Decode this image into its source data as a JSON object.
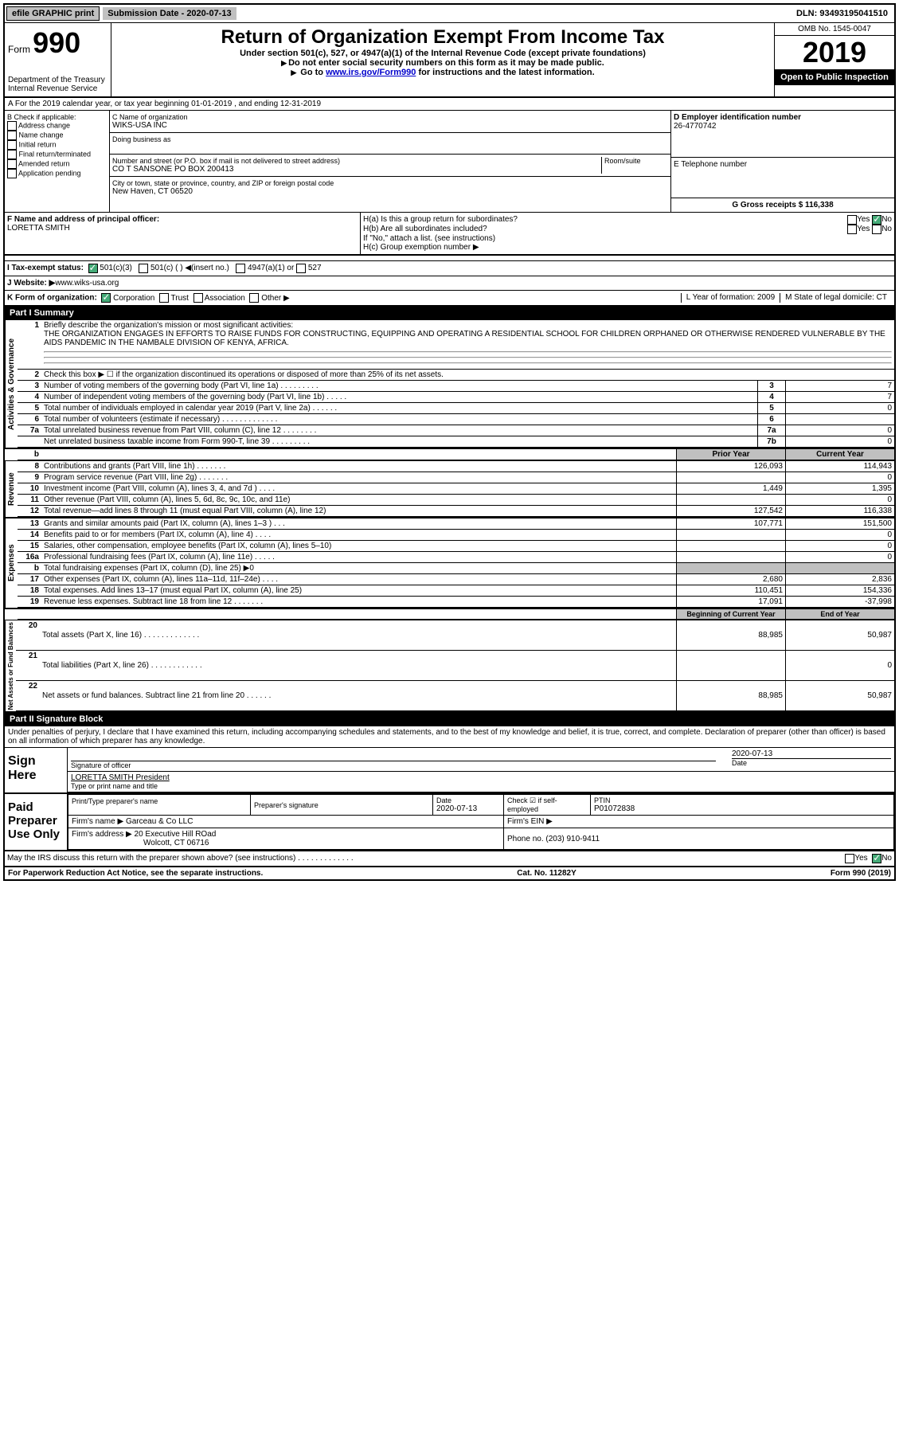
{
  "topbar": {
    "efile": "efile GRAPHIC print",
    "submission": "Submission Date - 2020-07-13",
    "dln": "DLN: 93493195041510"
  },
  "header": {
    "form": "Form",
    "num": "990",
    "dept": "Department of the Treasury\nInternal Revenue Service",
    "title": "Return of Organization Exempt From Income Tax",
    "sub1": "Under section 501(c), 527, or 4947(a)(1) of the Internal Revenue Code (except private foundations)",
    "sub2": "Do not enter social security numbers on this form as it may be made public.",
    "sub3_pre": "Go to ",
    "sub3_link": "www.irs.gov/Form990",
    "sub3_post": " for instructions and the latest information.",
    "omb": "OMB No. 1545-0047",
    "year": "2019",
    "inspection": "Open to Public Inspection"
  },
  "rowA": "A  For the 2019 calendar year, or tax year beginning 01-01-2019    , and ending 12-31-2019",
  "boxB": {
    "label": "B Check if applicable:",
    "opts": [
      "Address change",
      "Name change",
      "Initial return",
      "Final return/terminated",
      "Amended return",
      "Application pending"
    ]
  },
  "boxC": {
    "name_label": "C Name of organization",
    "name": "WIKS-USA INC",
    "dba_label": "Doing business as",
    "addr_label": "Number and street (or P.O. box if mail is not delivered to street address)",
    "room_label": "Room/suite",
    "addr": "CO T SANSONE PO BOX 200413",
    "city_label": "City or town, state or province, country, and ZIP or foreign postal code",
    "city": "New Haven, CT  06520"
  },
  "boxD": {
    "label": "D Employer identification number",
    "ein": "26-4770742"
  },
  "boxE": {
    "label": "E Telephone number"
  },
  "boxG": {
    "label": "G Gross receipts $ 116,338"
  },
  "boxF": {
    "label": "F  Name and address of principal officer:",
    "name": "LORETTA SMITH"
  },
  "boxH": {
    "a": "H(a)  Is this a group return for subordinates?",
    "b": "H(b)  Are all subordinates included?",
    "b2": "If \"No,\" attach a list. (see instructions)",
    "c": "H(c)  Group exemption number ▶",
    "yes": "Yes",
    "no": "No"
  },
  "rowI": {
    "label": "I   Tax-exempt status:",
    "o1": "501(c)(3)",
    "o2": "501(c) (  ) ◀(insert no.)",
    "o3": "4947(a)(1) or",
    "o4": "527"
  },
  "rowJ": {
    "label": "J   Website: ▶ ",
    "url": "www.wiks-usa.org"
  },
  "rowK": {
    "label": "K Form of organization:",
    "opts": [
      "Corporation",
      "Trust",
      "Association",
      "Other ▶"
    ],
    "L": "L Year of formation: 2009",
    "M": "M State of legal domicile: CT"
  },
  "part1": {
    "label": "Part I      Summary"
  },
  "summary": {
    "line1": "Briefly describe the organization's mission or most significant activities:",
    "mission": "THE ORGANIZATION ENGAGES IN EFFORTS TO RAISE FUNDS FOR CONSTRUCTING, EQUIPPING AND OPERATING A RESIDENTIAL SCHOOL FOR CHILDREN ORPHANED OR OTHERWISE RENDERED VULNERABLE BY THE AIDS PANDEMIC IN THE NAMBALE DIVISION OF KENYA, AFRICA.",
    "line2": "Check this box ▶ ☐ if the organization discontinued its operations or disposed of more than 25% of its net assets.",
    "gov": [
      {
        "n": "3",
        "t": "Number of voting members of the governing body (Part VI, line 1a)   .   .   .   .   .   .   .   .   .",
        "b": "3",
        "v": "7"
      },
      {
        "n": "4",
        "t": "Number of independent voting members of the governing body (Part VI, line 1b)   .   .   .   .   .",
        "b": "4",
        "v": "7"
      },
      {
        "n": "5",
        "t": "Total number of individuals employed in calendar year 2019 (Part V, line 2a)   .   .   .   .   .   .",
        "b": "5",
        "v": "0"
      },
      {
        "n": "6",
        "t": "Total number of volunteers (estimate if necessary)   .   .   .   .   .   .   .   .   .   .   .   .   .",
        "b": "6",
        "v": ""
      },
      {
        "n": "7a",
        "t": "Total unrelated business revenue from Part VIII, column (C), line 12   .   .   .   .   .   .   .   .",
        "b": "7a",
        "v": "0"
      },
      {
        "n": "",
        "t": "Net unrelated business taxable income from Form 990-T, line 39   .   .   .   .   .   .   .   .   .",
        "b": "7b",
        "v": "0"
      }
    ],
    "prior_hdr": "Prior Year",
    "curr_hdr": "Current Year",
    "rev": [
      {
        "n": "8",
        "t": "Contributions and grants (Part VIII, line 1h)   .   .   .   .   .   .   .",
        "p": "126,093",
        "c": "114,943"
      },
      {
        "n": "9",
        "t": "Program service revenue (Part VIII, line 2g)   .   .   .   .   .   .   .",
        "p": "",
        "c": "0"
      },
      {
        "n": "10",
        "t": "Investment income (Part VIII, column (A), lines 3, 4, and 7d )   .   .   .   .",
        "p": "1,449",
        "c": "1,395"
      },
      {
        "n": "11",
        "t": "Other revenue (Part VIII, column (A), lines 5, 6d, 8c, 9c, 10c, and 11e)",
        "p": "",
        "c": "0"
      },
      {
        "n": "12",
        "t": "Total revenue—add lines 8 through 11 (must equal Part VIII, column (A), line 12)",
        "p": "127,542",
        "c": "116,338"
      }
    ],
    "exp": [
      {
        "n": "13",
        "t": "Grants and similar amounts paid (Part IX, column (A), lines 1–3 )   .   .   .",
        "p": "107,771",
        "c": "151,500"
      },
      {
        "n": "14",
        "t": "Benefits paid to or for members (Part IX, column (A), line 4)   .   .   .   .",
        "p": "",
        "c": "0"
      },
      {
        "n": "15",
        "t": "Salaries, other compensation, employee benefits (Part IX, column (A), lines 5–10)",
        "p": "",
        "c": "0"
      },
      {
        "n": "16a",
        "t": "Professional fundraising fees (Part IX, column (A), line 11e)   .   .   .   .   .",
        "p": "",
        "c": "0"
      },
      {
        "n": "b",
        "t": "Total fundraising expenses (Part IX, column (D), line 25) ▶0",
        "p": "SHADED",
        "c": "SHADED"
      },
      {
        "n": "17",
        "t": "Other expenses (Part IX, column (A), lines 11a–11d, 11f–24e)   .   .   .   .",
        "p": "2,680",
        "c": "2,836"
      },
      {
        "n": "18",
        "t": "Total expenses. Add lines 13–17 (must equal Part IX, column (A), line 25)",
        "p": "110,451",
        "c": "154,336"
      },
      {
        "n": "19",
        "t": "Revenue less expenses. Subtract line 18 from line 12   .   .   .   .   .   .   .",
        "p": "17,091",
        "c": "-37,998"
      }
    ],
    "beg_hdr": "Beginning of Current Year",
    "end_hdr": "End of Year",
    "net": [
      {
        "n": "20",
        "t": "Total assets (Part X, line 16)   .   .   .   .   .   .   .   .   .   .   .   .   .",
        "p": "88,985",
        "c": "50,987"
      },
      {
        "n": "21",
        "t": "Total liabilities (Part X, line 26)   .   .   .   .   .   .   .   .   .   .   .   .",
        "p": "",
        "c": "0"
      },
      {
        "n": "22",
        "t": "Net assets or fund balances. Subtract line 21 from line 20   .   .   .   .   .   .",
        "p": "88,985",
        "c": "50,987"
      }
    ],
    "vlabels": {
      "gov": "Activities & Governance",
      "rev": "Revenue",
      "exp": "Expenses",
      "net": "Net Assets or Fund Balances"
    }
  },
  "part2": {
    "label": "Part II     Signature Block",
    "decl": "Under penalties of perjury, I declare that I have examined this return, including accompanying schedules and statements, and to the best of my knowledge and belief, it is true, correct, and complete. Declaration of preparer (other than officer) is based on all information of which preparer has any knowledge."
  },
  "sign": {
    "label": "Sign Here",
    "sig_officer": "Signature of officer",
    "date": "Date",
    "date_val": "2020-07-13",
    "name": "LORETTA SMITH  President",
    "type_label": "Type or print name and title"
  },
  "paid": {
    "label": "Paid Preparer Use Only",
    "c1": "Print/Type preparer's name",
    "c2": "Preparer's signature",
    "c3": "Date",
    "c3v": "2020-07-13",
    "c4": "Check ☑ if self-employed",
    "c5": "PTIN",
    "c5v": "P01072838",
    "firm_label": "Firm's name   ▶",
    "firm": "Garceau & Co LLC",
    "ein_label": "Firm's EIN ▶",
    "addr_label": "Firm's address ▶",
    "addr1": "20 Executive Hill ROad",
    "addr2": "Wolcott, CT  06716",
    "phone_label": "Phone no. (203) 910-9411"
  },
  "discuss": "May the IRS discuss this return with the preparer shown above? (see instructions)   .   .   .   .   .   .   .   .   .   .   .   .   .",
  "footer": {
    "l": "For Paperwork Reduction Act Notice, see the separate instructions.",
    "c": "Cat. No. 11282Y",
    "r": "Form 990 (2019)"
  }
}
